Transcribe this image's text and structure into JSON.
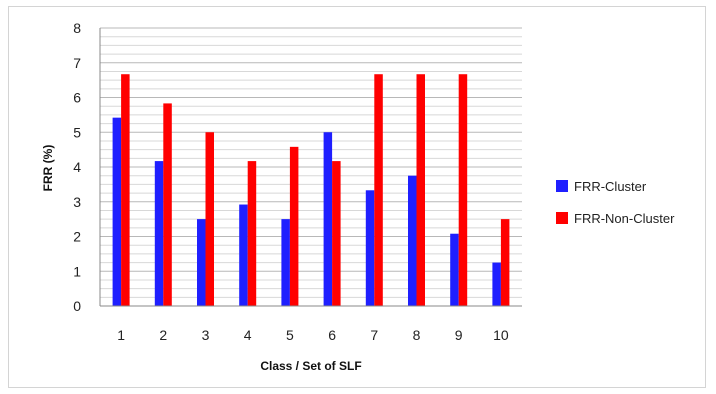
{
  "chart_data": {
    "type": "bar",
    "title": "",
    "xlabel": "Class / Set of SLF",
    "ylabel": "FRR (%)",
    "categories": [
      "1",
      "2",
      "3",
      "4",
      "5",
      "6",
      "7",
      "8",
      "9",
      "10"
    ],
    "ylim": [
      0,
      8
    ],
    "yticks": [
      0,
      1,
      2,
      3,
      4,
      5,
      6,
      7,
      8
    ],
    "grid": true,
    "legend_position": "right",
    "series": [
      {
        "name": "FRR-Cluster",
        "color": "#1f1fff",
        "values": [
          5.42,
          4.17,
          2.5,
          2.92,
          2.5,
          5.0,
          3.33,
          3.75,
          2.08,
          1.25
        ]
      },
      {
        "name": "FRR-Non-Cluster",
        "color": "#ff0000",
        "values": [
          6.67,
          5.83,
          5.0,
          4.17,
          4.58,
          4.17,
          6.67,
          6.67,
          6.67,
          2.5
        ]
      }
    ]
  }
}
